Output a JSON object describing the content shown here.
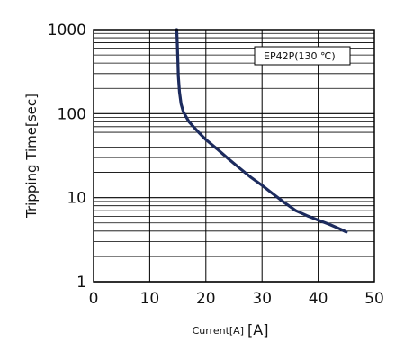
{
  "chart_data": {
    "type": "line",
    "title": "",
    "xlabel": "Current[A]",
    "xlabel_unit": "[A]",
    "ylabel": "Tripping Time[sec]",
    "xlim": [
      0,
      50
    ],
    "ylim": [
      1,
      1000
    ],
    "yscale": "log",
    "grid": true,
    "xticks": [
      0,
      10,
      20,
      30,
      40,
      50
    ],
    "yticks": [
      1,
      10,
      100,
      1000
    ],
    "x_tick_labels": [
      "0",
      "10",
      "20",
      "30",
      "40",
      "50"
    ],
    "y_tick_labels": [
      "1",
      "10",
      "100",
      "1000"
    ],
    "annotation": "EP42P(130 ℃)",
    "colors": {
      "curve": "#1c2b5e",
      "grid": "#000000",
      "text": "#111111"
    },
    "series": [
      {
        "x": [
          14.8,
          14.9,
          15.0,
          15.1,
          15.3,
          15.6,
          16.0,
          17.0,
          18.5,
          20.0,
          22.0,
          24.0,
          26.0,
          28.0,
          30.0,
          32.0,
          34.0,
          35.0,
          36.0,
          38.0,
          40.0,
          42.0,
          44.0,
          45.0
        ],
        "y": [
          1000,
          700,
          450,
          280,
          180,
          130,
          105,
          80,
          62,
          49,
          38,
          29,
          22.5,
          17.5,
          14,
          11,
          8.7,
          7.8,
          7,
          6.1,
          5.4,
          4.8,
          4.2,
          3.9
        ]
      }
    ]
  }
}
